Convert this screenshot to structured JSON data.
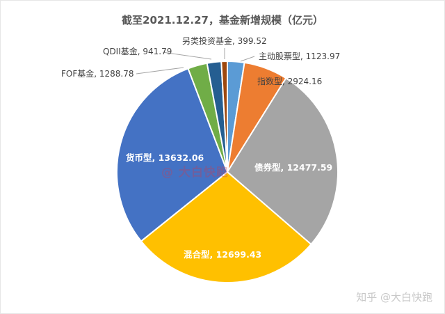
{
  "chart_data": {
    "type": "pie",
    "title": "截至2021.12.27，基金新增规模（亿元）",
    "unit": "亿元",
    "categories": [
      "主动股票型",
      "指数型",
      "债券型",
      "混合型",
      "货币型",
      "FOF基金",
      "QDII基金",
      "另类投资基金"
    ],
    "values": [
      1123.97,
      2924.16,
      12477.59,
      12699.43,
      13632.06,
      1288.78,
      941.79,
      399.52
    ],
    "colors": [
      "#5B9BD5",
      "#ED7D31",
      "#A5A5A5",
      "#FFC000",
      "#4472C4",
      "#70AD47",
      "#255E91",
      "#9E480E"
    ],
    "labels": [
      "主动股票型, 1123.97",
      "指数型, 2924.16",
      "债券型, 12477.59",
      "混合型, 12699.43",
      "货币型, 13632.06",
      "FOF基金, 1288.78",
      "QDII基金, 941.79",
      "另类投资基金, 399.52"
    ],
    "start_angle_deg": 0,
    "direction": "clockwise",
    "legend": "none"
  },
  "watermark": "@ 大白快跑",
  "footer": "知乎 @大白快跑"
}
